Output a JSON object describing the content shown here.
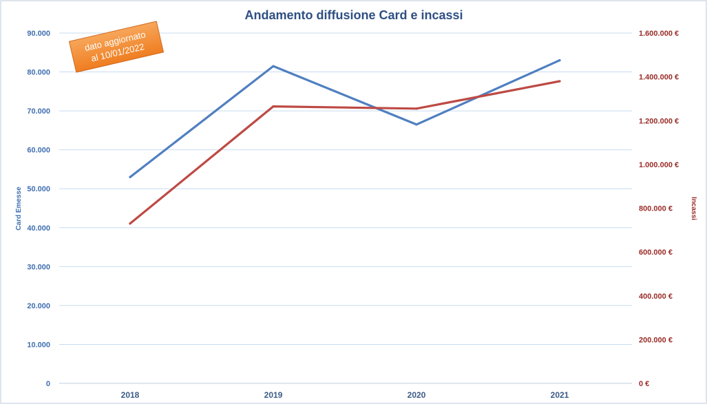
{
  "chart_data": {
    "type": "line",
    "title": "Andamento diffusione Card e incassi",
    "categories": [
      "2018",
      "2019",
      "2020",
      "2021"
    ],
    "series": [
      {
        "name": "Card Emesse",
        "axis": "left",
        "color": "#4f7fc0",
        "values": [
          53000,
          81500,
          66500,
          83000
        ]
      },
      {
        "name": "Incassi",
        "axis": "right",
        "color": "#bd4a44",
        "values": [
          730000,
          1265000,
          1255000,
          1380000
        ]
      }
    ],
    "y_left": {
      "label": "Card Emesse",
      "range": [
        0,
        90000
      ],
      "ticks": [
        0,
        10000,
        20000,
        30000,
        40000,
        50000,
        60000,
        70000,
        80000,
        90000
      ],
      "tick_labels": [
        "0",
        "10.000",
        "20.000",
        "30.000",
        "40.000",
        "50.000",
        "60.000",
        "70.000",
        "80.000",
        "90.000"
      ],
      "color": "#3f6fb1"
    },
    "y_right": {
      "label": "Incassi",
      "range": [
        0,
        1600000
      ],
      "ticks": [
        0,
        200000,
        400000,
        600000,
        800000,
        1000000,
        1200000,
        1400000,
        1600000
      ],
      "tick_labels": [
        "0 €",
        "200.000 €",
        "400.000 €",
        "600.000 €",
        "800.000 €",
        "1.000.000 €",
        "1.200.000 €",
        "1.400.000 €",
        "1.600.000 €"
      ],
      "color": "#9a2b27"
    },
    "grid": true,
    "annotation": {
      "text_line1": "dato aggiornato",
      "text_line2": "al 10/01/2022",
      "fill_color": "#f28a2e"
    }
  }
}
